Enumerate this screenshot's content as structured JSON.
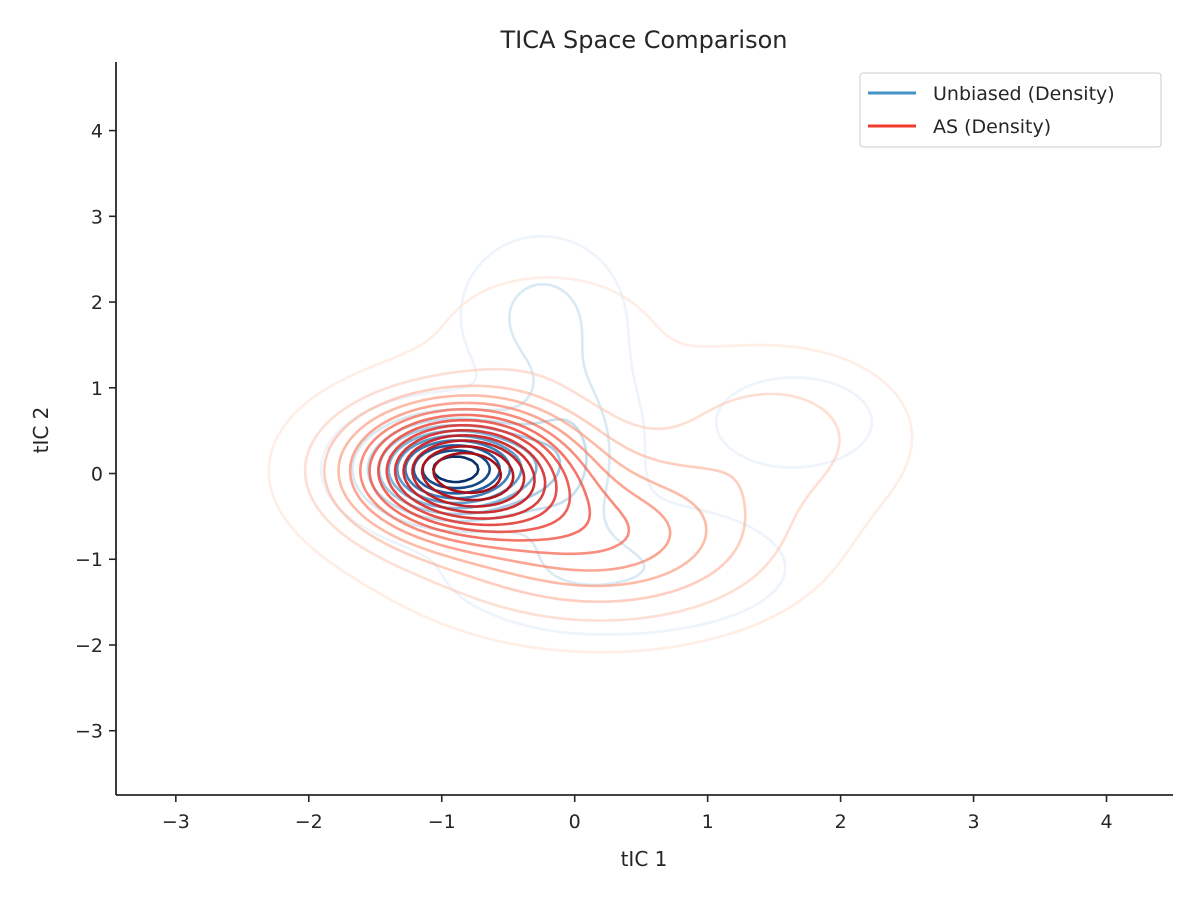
{
  "chart_data": {
    "type": "contour",
    "title": "TICA Space Comparison",
    "xlabel": "tIC 1",
    "ylabel": "tIC 2",
    "xlim": [
      -3.45,
      4.5
    ],
    "ylim": [
      -3.75,
      4.8
    ],
    "xticks": [
      -3,
      -2,
      -1,
      0,
      1,
      2,
      3,
      4
    ],
    "yticks": [
      -3,
      -2,
      -1,
      0,
      1,
      2,
      3,
      4
    ],
    "xtick_labels": [
      "−3",
      "−2",
      "−1",
      "0",
      "1",
      "2",
      "3",
      "4"
    ],
    "ytick_labels": [
      "−3",
      "−2",
      "−1",
      "0",
      "1",
      "2",
      "3",
      "4"
    ],
    "grid": false,
    "legend_position": "top-right",
    "series": [
      {
        "name": "Unbiased (Density)",
        "color": "#4292c6",
        "colormap": "Blues",
        "levels": 10,
        "modes": [
          {
            "x": -0.9,
            "y": 0.05,
            "sx": 0.38,
            "sy": 0.34,
            "w": 1.0
          },
          {
            "x": -0.25,
            "y": 1.85,
            "sx": 0.33,
            "sy": 0.5,
            "w": 0.16
          },
          {
            "x": 1.65,
            "y": 0.6,
            "sx": 0.45,
            "sy": 0.4,
            "w": 0.07
          },
          {
            "x": 0.3,
            "y": -1.1,
            "sx": 0.75,
            "sy": 0.45,
            "w": 0.13
          },
          {
            "x": -0.05,
            "y": 0.3,
            "sx": 0.28,
            "sy": 0.7,
            "w": 0.22
          }
        ]
      },
      {
        "name": "AS (Density)",
        "color": "#ef3b2c",
        "colormap": "Reds",
        "levels": 14,
        "modes": [
          {
            "x": -0.85,
            "y": 0.05,
            "sx": 0.55,
            "sy": 0.5,
            "w": 1.0
          },
          {
            "x": 0.2,
            "y": -0.75,
            "sx": 0.8,
            "sy": 0.6,
            "w": 0.38
          },
          {
            "x": 1.5,
            "y": 0.45,
            "sx": 0.6,
            "sy": 0.6,
            "w": 0.14
          },
          {
            "x": -0.2,
            "y": 1.6,
            "sx": 0.6,
            "sy": 0.55,
            "w": 0.07
          }
        ]
      }
    ]
  }
}
